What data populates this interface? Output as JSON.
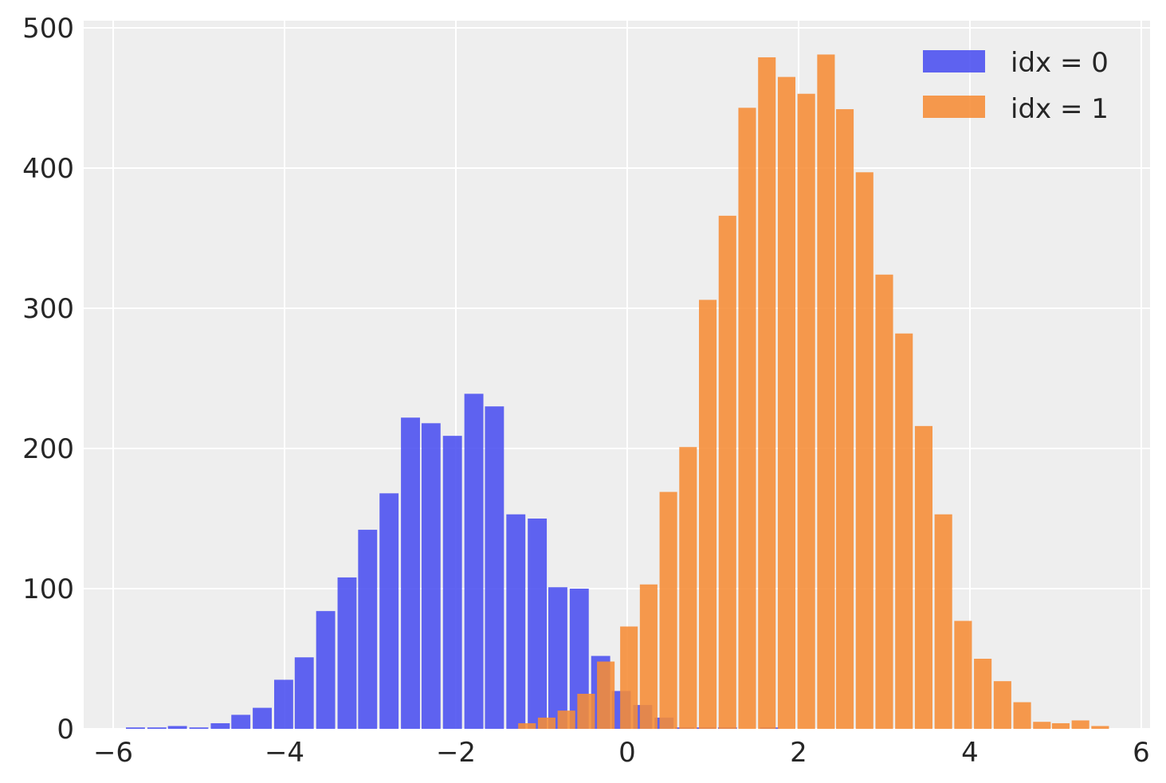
{
  "chart_data": {
    "type": "bar",
    "title": "",
    "xlabel": "",
    "ylabel": "",
    "xlim": [
      -6.3,
      6.1
    ],
    "ylim": [
      0,
      500
    ],
    "grid": true,
    "legend_placement": "top-right",
    "xticks": [
      -6,
      -4,
      -2,
      0,
      2,
      4,
      6
    ],
    "xtick_labels": [
      "−6",
      "−4",
      "−2",
      "0",
      "2",
      "4",
      "6"
    ],
    "yticks": [
      0,
      100,
      200,
      300,
      400,
      500
    ],
    "ytick_labels": [
      "0",
      "100",
      "200",
      "300",
      "400",
      "500"
    ],
    "series": [
      {
        "name": "idx = 0",
        "color": "#4a4ff0",
        "bin_width": 0.2467,
        "bin_centers": [
          -5.74,
          -5.49,
          -5.25,
          -5.0,
          -4.75,
          -4.51,
          -4.26,
          -4.01,
          -3.77,
          -3.52,
          -3.27,
          -3.03,
          -2.78,
          -2.53,
          -2.29,
          -2.04,
          -1.79,
          -1.55,
          -1.3,
          -1.05,
          -0.81,
          -0.56,
          -0.31,
          -0.07,
          0.18,
          0.43,
          0.67,
          0.92,
          1.17,
          1.41,
          1.66
        ],
        "values": [
          1,
          1,
          2,
          1,
          4,
          10,
          15,
          35,
          51,
          84,
          108,
          142,
          168,
          222,
          218,
          209,
          239,
          230,
          153,
          150,
          101,
          100,
          52,
          27,
          17,
          8,
          1,
          1,
          1,
          0,
          1
        ]
      },
      {
        "name": "idx = 1",
        "color": "#f68c35",
        "bin_width": 0.2283,
        "bin_centers": [
          -1.17,
          -0.94,
          -0.71,
          -0.48,
          -0.25,
          0.02,
          0.25,
          0.48,
          0.71,
          0.94,
          1.17,
          1.4,
          1.63,
          1.86,
          2.09,
          2.32,
          2.54,
          2.77,
          3.0,
          3.23,
          3.46,
          3.69,
          3.92,
          4.15,
          4.38,
          4.61,
          4.84,
          5.06,
          5.29,
          5.52
        ],
        "values": [
          4,
          8,
          13,
          25,
          48,
          73,
          103,
          169,
          201,
          306,
          366,
          443,
          479,
          465,
          453,
          481,
          442,
          397,
          324,
          282,
          216,
          153,
          77,
          50,
          34,
          19,
          5,
          4,
          6,
          2
        ]
      }
    ]
  }
}
